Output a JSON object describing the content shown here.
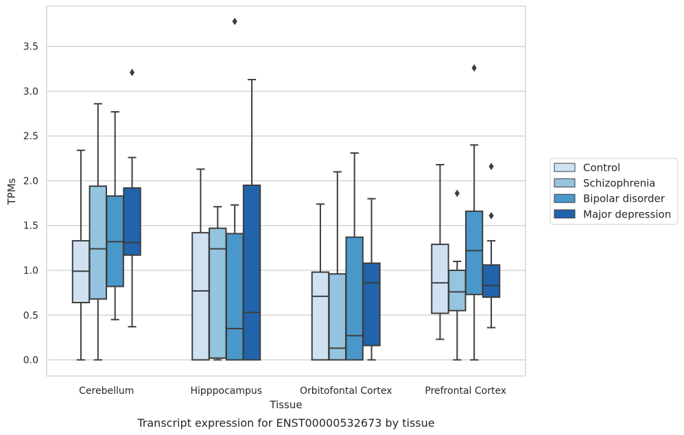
{
  "caption": "Transcript expression for ENST00000532673 by tissue",
  "chart_data": {
    "type": "box",
    "xlabel": "Tissue",
    "ylabel": "TPMs",
    "ylim": [
      -0.18,
      3.95
    ],
    "yticks": [
      "0.0",
      "0.5",
      "1.0",
      "1.5",
      "2.0",
      "2.5",
      "3.0",
      "3.5"
    ],
    "ytick_values": [
      0,
      0.5,
      1.0,
      1.5,
      2.0,
      2.5,
      3.0,
      3.5
    ],
    "grid": true,
    "legend_position": "right",
    "categories": [
      "Cerebellum",
      "Hipppocampus",
      "Orbitofontal Cortex",
      "Prefrontal Cortex"
    ],
    "series": [
      {
        "name": "Control",
        "color": "#d0e1f2",
        "boxes": [
          {
            "whislo": 0.0,
            "q1": 0.64,
            "med": 0.99,
            "q3": 1.33,
            "whishi": 2.34,
            "fliers": []
          },
          {
            "whislo": 0.0,
            "q1": 0.0,
            "med": 0.77,
            "q3": 1.42,
            "whishi": 2.13,
            "fliers": []
          },
          {
            "whislo": 0.0,
            "q1": 0.0,
            "med": 0.71,
            "q3": 0.98,
            "whishi": 1.74,
            "fliers": []
          },
          {
            "whislo": 0.23,
            "q1": 0.52,
            "med": 0.86,
            "q3": 1.29,
            "whishi": 2.18,
            "fliers": []
          }
        ]
      },
      {
        "name": "Schizophrenia",
        "color": "#94c4df",
        "boxes": [
          {
            "whislo": 0.0,
            "q1": 0.68,
            "med": 1.24,
            "q3": 1.94,
            "whishi": 2.86,
            "fliers": []
          },
          {
            "whislo": 0.0,
            "q1": 0.02,
            "med": 1.24,
            "q3": 1.47,
            "whishi": 1.71,
            "fliers": []
          },
          {
            "whislo": 0.0,
            "q1": 0.0,
            "med": 0.13,
            "q3": 0.96,
            "whishi": 2.1,
            "fliers": []
          },
          {
            "whislo": 0.0,
            "q1": 0.55,
            "med": 0.76,
            "q3": 1.0,
            "whishi": 1.1,
            "fliers": [
              1.86
            ]
          }
        ]
      },
      {
        "name": "Bipolar disorder",
        "color": "#4a98c9",
        "boxes": [
          {
            "whislo": 0.45,
            "q1": 0.82,
            "med": 1.32,
            "q3": 1.83,
            "whishi": 2.77,
            "fliers": []
          },
          {
            "whislo": 0.0,
            "q1": 0.0,
            "med": 0.35,
            "q3": 1.41,
            "whishi": 1.73,
            "fliers": [
              3.78
            ]
          },
          {
            "whislo": 0.0,
            "q1": 0.0,
            "med": 0.27,
            "q3": 1.37,
            "whishi": 2.31,
            "fliers": []
          },
          {
            "whislo": 0.0,
            "q1": 0.73,
            "med": 1.22,
            "q3": 1.66,
            "whishi": 2.4,
            "fliers": [
              3.26
            ]
          }
        ]
      },
      {
        "name": "Major depression",
        "color": "#2164ab",
        "boxes": [
          {
            "whislo": 0.37,
            "q1": 1.17,
            "med": 1.31,
            "q3": 1.92,
            "whishi": 2.26,
            "fliers": [
              3.21
            ]
          },
          {
            "whislo": 0.0,
            "q1": 0.0,
            "med": 0.53,
            "q3": 1.95,
            "whishi": 3.13,
            "fliers": []
          },
          {
            "whislo": 0.0,
            "q1": 0.16,
            "med": 0.86,
            "q3": 1.08,
            "whishi": 1.8,
            "fliers": []
          },
          {
            "whislo": 0.36,
            "q1": 0.7,
            "med": 0.83,
            "q3": 1.06,
            "whishi": 1.33,
            "fliers": [
              1.61,
              2.16
            ]
          }
        ]
      }
    ]
  }
}
